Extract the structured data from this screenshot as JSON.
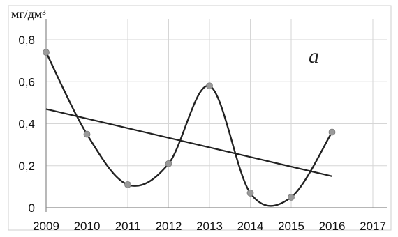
{
  "chart_data": {
    "type": "line",
    "unit_label": "мг/дм³",
    "panel_label": "а",
    "x": [
      2009,
      2010,
      2011,
      2012,
      2013,
      2014,
      2015,
      2016
    ],
    "series": [
      {
        "values": [
          0.74,
          0.35,
          0.11,
          0.21,
          0.58,
          0.07,
          0.05,
          0.36
        ]
      }
    ],
    "trend": {
      "x": [
        2009,
        2016
      ],
      "y": [
        0.47,
        0.15
      ]
    },
    "xlim": [
      2009,
      2017
    ],
    "ylim": [
      0,
      0.8
    ],
    "xticks": [
      "2009",
      "2010",
      "2011",
      "2012",
      "2013",
      "2014",
      "2015",
      "2016",
      "2017"
    ],
    "yticks": [
      "0",
      "0,2",
      "0,4",
      "0,6",
      "0,8"
    ],
    "grid": true,
    "colors": {
      "line": "#222222",
      "marker": "#9a9a9a",
      "grid": "#d6d6d6",
      "axis": "#8a8a8a"
    }
  }
}
